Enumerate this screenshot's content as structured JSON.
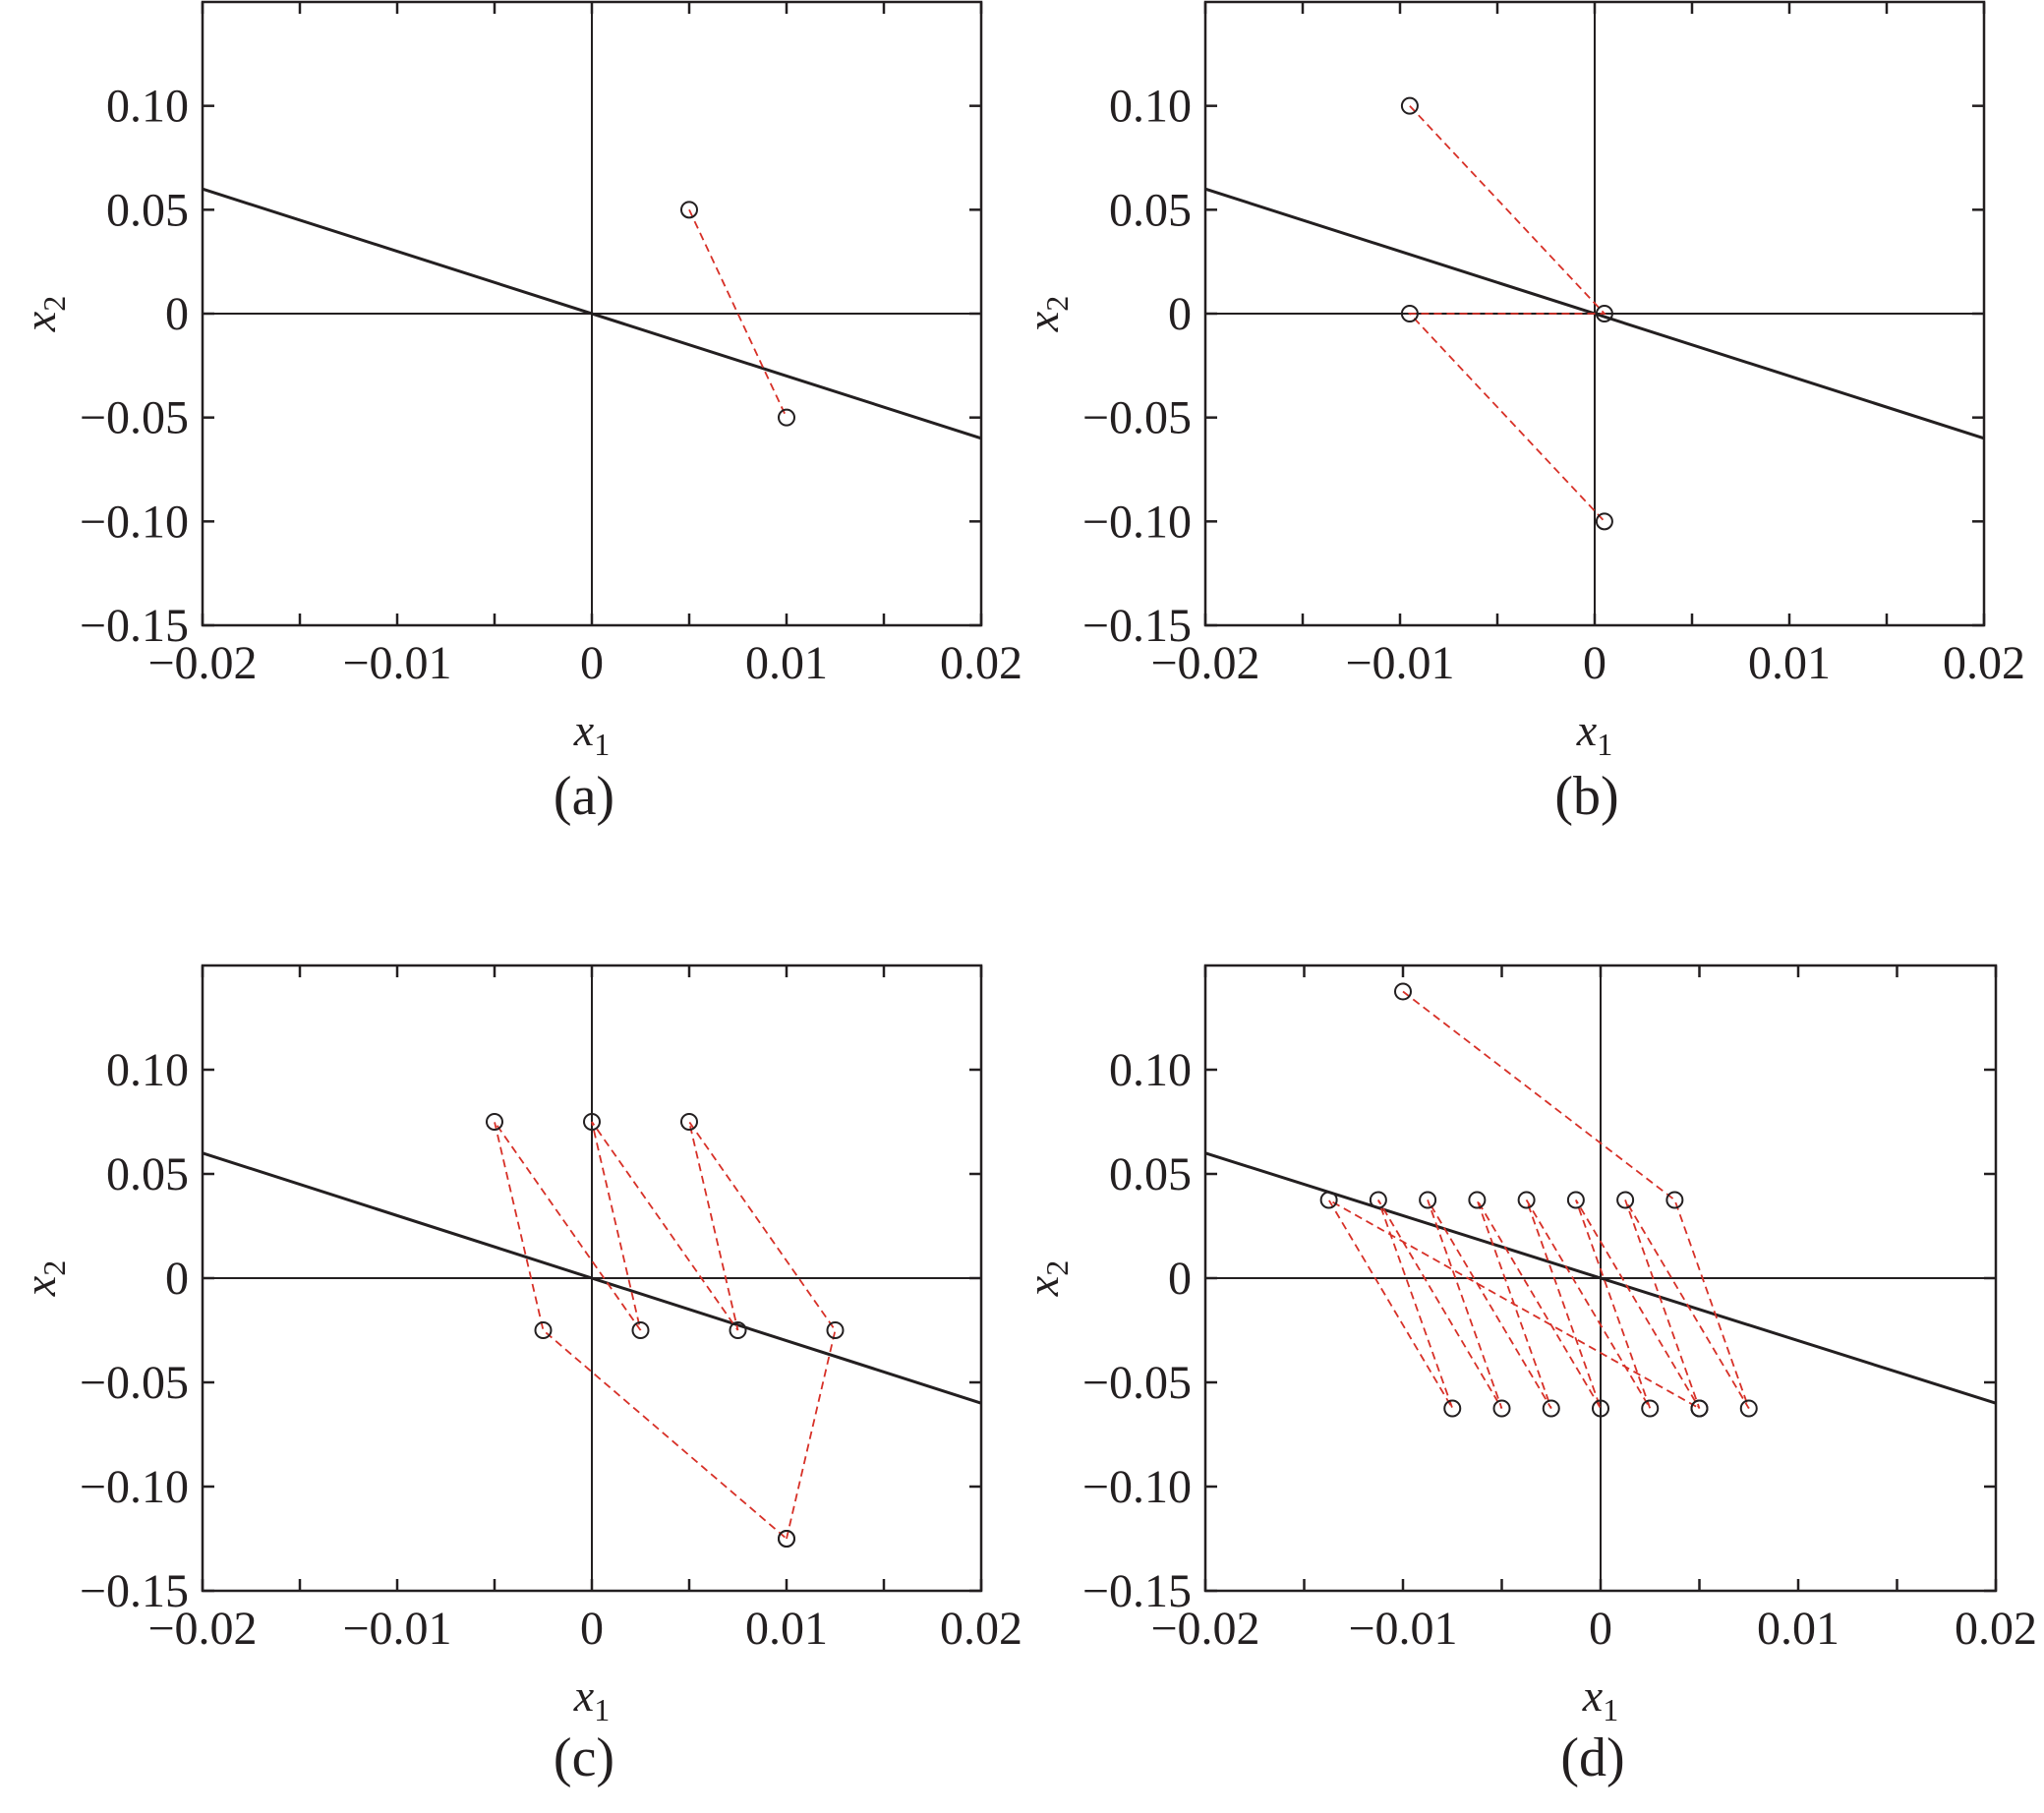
{
  "colors": {
    "axis": "#231f20",
    "path": "#d73027",
    "marker": "#231f20",
    "background": "#ffffff"
  },
  "chart_data": [
    {
      "type": "scatter",
      "panel_label": "(a)",
      "xlabel": "x",
      "xlabel_sub": "1",
      "ylabel": "x",
      "ylabel_sub": "2",
      "xlim": [
        -0.02,
        0.02
      ],
      "ylim": [
        -0.15,
        0.15
      ],
      "xticks": [
        -0.02,
        -0.01,
        0,
        0.01,
        0.02
      ],
      "xtick_labels": [
        "−0.02",
        "−0.01",
        "0",
        "0.01",
        "0.02"
      ],
      "yticks": [
        -0.15,
        -0.1,
        -0.05,
        0,
        0.05,
        0.1
      ],
      "ytick_labels": [
        "−0.15",
        "−0.10",
        "−0.05",
        "0",
        "0.05",
        "0.10"
      ],
      "grid": false,
      "line": {
        "x": [
          -0.02,
          0.02
        ],
        "y": [
          0.06,
          -0.06
        ]
      },
      "path": {
        "x": [
          0.005,
          0.01
        ],
        "y": [
          0.05,
          -0.05
        ]
      }
    },
    {
      "type": "scatter",
      "panel_label": "(b)",
      "xlabel": "x",
      "xlabel_sub": "1",
      "ylabel": "x",
      "ylabel_sub": "2",
      "xlim": [
        -0.02,
        0.02
      ],
      "ylim": [
        -0.15,
        0.15
      ],
      "xticks": [
        -0.02,
        -0.01,
        0,
        0.01,
        0.02
      ],
      "xtick_labels": [
        "−0.02",
        "−0.01",
        "0",
        "0.01",
        "0.02"
      ],
      "yticks": [
        -0.15,
        -0.1,
        -0.05,
        0,
        0.05,
        0.1
      ],
      "ytick_labels": [
        "−0.15",
        "−0.10",
        "−0.05",
        "0",
        "0.05",
        "0.10"
      ],
      "grid": false,
      "line": {
        "x": [
          -0.02,
          0.02
        ],
        "y": [
          0.06,
          -0.06
        ]
      },
      "path": {
        "x": [
          -0.0095,
          0.0005,
          -0.0095,
          0.0005
        ],
        "y": [
          0.1,
          0.0,
          0.0,
          -0.1
        ]
      }
    },
    {
      "type": "scatter",
      "panel_label": "(c)",
      "xlabel": "x",
      "xlabel_sub": "1",
      "ylabel": "x",
      "ylabel_sub": "2",
      "xlim": [
        -0.02,
        0.02
      ],
      "ylim": [
        -0.15,
        0.15
      ],
      "xticks": [
        -0.02,
        -0.01,
        0,
        0.01,
        0.02
      ],
      "xtick_labels": [
        "−0.02",
        "−0.01",
        "0",
        "0.01",
        "0.02"
      ],
      "yticks": [
        -0.15,
        -0.1,
        -0.05,
        0,
        0.05,
        0.1
      ],
      "ytick_labels": [
        "−0.15",
        "−0.10",
        "−0.05",
        "0",
        "0.05",
        "0.10"
      ],
      "grid": false,
      "line": {
        "x": [
          -0.02,
          0.02
        ],
        "y": [
          0.06,
          -0.06
        ]
      },
      "path": {
        "x": [
          0.01,
          0.0125,
          0.005,
          0.0075,
          0.0,
          0.0025,
          -0.005,
          -0.0025,
          0.01
        ],
        "y": [
          -0.125,
          -0.025,
          0.075,
          -0.025,
          0.075,
          -0.025,
          0.075,
          -0.025,
          -0.125
        ]
      }
    },
    {
      "type": "scatter",
      "panel_label": "(d)",
      "xlabel": "x",
      "xlabel_sub": "1",
      "ylabel": "x",
      "ylabel_sub": "2",
      "xlim": [
        -0.02,
        0.02
      ],
      "ylim": [
        -0.15,
        0.15
      ],
      "xticks": [
        -0.02,
        -0.01,
        0,
        0.01,
        0.02
      ],
      "xtick_labels": [
        "−0.02",
        "−0.01",
        "0",
        "0.01",
        "0.02"
      ],
      "yticks": [
        -0.15,
        -0.1,
        -0.05,
        0,
        0.05,
        0.1
      ],
      "ytick_labels": [
        "−0.15",
        "−0.10",
        "−0.05",
        "0",
        "0.05",
        "0.10"
      ],
      "grid": false,
      "line": {
        "x": [
          -0.02,
          0.02
        ],
        "y": [
          0.06,
          -0.06
        ]
      },
      "path": {
        "x": [
          -0.01,
          0.00375,
          0.0075,
          0.00125,
          0.005,
          -0.00125,
          0.0025,
          -0.00375,
          0.0,
          -0.00625,
          -0.0025,
          -0.00875,
          -0.005,
          -0.01125,
          -0.0075,
          -0.01375,
          0.005
        ],
        "y": [
          0.1375,
          0.0375,
          -0.0625,
          0.0375,
          -0.0625,
          0.0375,
          -0.0625,
          0.0375,
          -0.0625,
          0.0375,
          -0.0625,
          0.0375,
          -0.0625,
          0.0375,
          -0.0625,
          0.0375,
          -0.0625
        ]
      }
    }
  ]
}
